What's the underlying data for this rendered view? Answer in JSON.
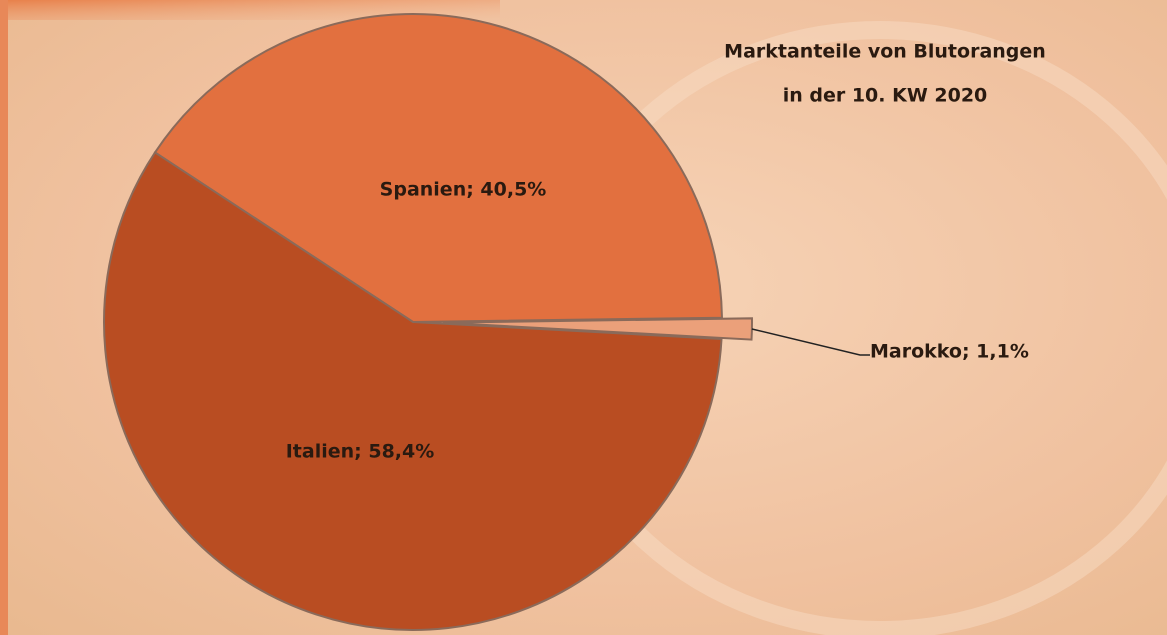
{
  "chart_data": {
    "type": "pie",
    "title": [
      "Marktanteile von Blutorangen",
      "in der 10. KW 2020"
    ],
    "values": [
      40.5,
      1.1,
      58.4
    ],
    "value_labels": [
      "Spanien; 40,5%",
      "Marokko; 1,1%",
      "Italien; 58,4%"
    ],
    "colors": [
      "#e2703f",
      "#eba07a",
      "#b94d22"
    ],
    "exploded": [
      false,
      true,
      false
    ]
  }
}
